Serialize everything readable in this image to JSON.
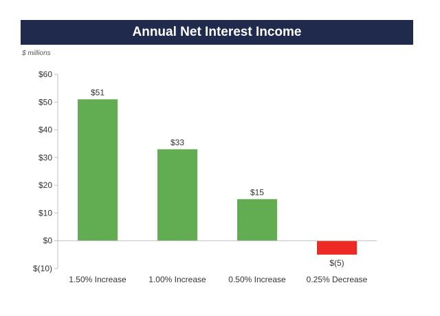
{
  "chart_data": {
    "type": "bar",
    "title": "Annual Net Interest Income",
    "units_label": "$ millions",
    "categories": [
      "1.50% Increase",
      "1.00% Increase",
      "0.50% Increase",
      "0.25% Decrease"
    ],
    "values": [
      51,
      33,
      15,
      -5
    ],
    "data_labels": [
      "$51",
      "$33",
      "$15",
      "$(5)"
    ],
    "ylim": [
      -10,
      60
    ],
    "yticks": [
      60,
      50,
      40,
      30,
      20,
      10,
      0,
      -10
    ],
    "ytick_labels": [
      "$60",
      "$50",
      "$40",
      "$30",
      "$20",
      "$10",
      "$0",
      "$(10)"
    ],
    "grid": false,
    "colors": {
      "positive": "#62ad52",
      "negative": "#ee2a24",
      "title_bg": "#1f2a4d"
    }
  }
}
